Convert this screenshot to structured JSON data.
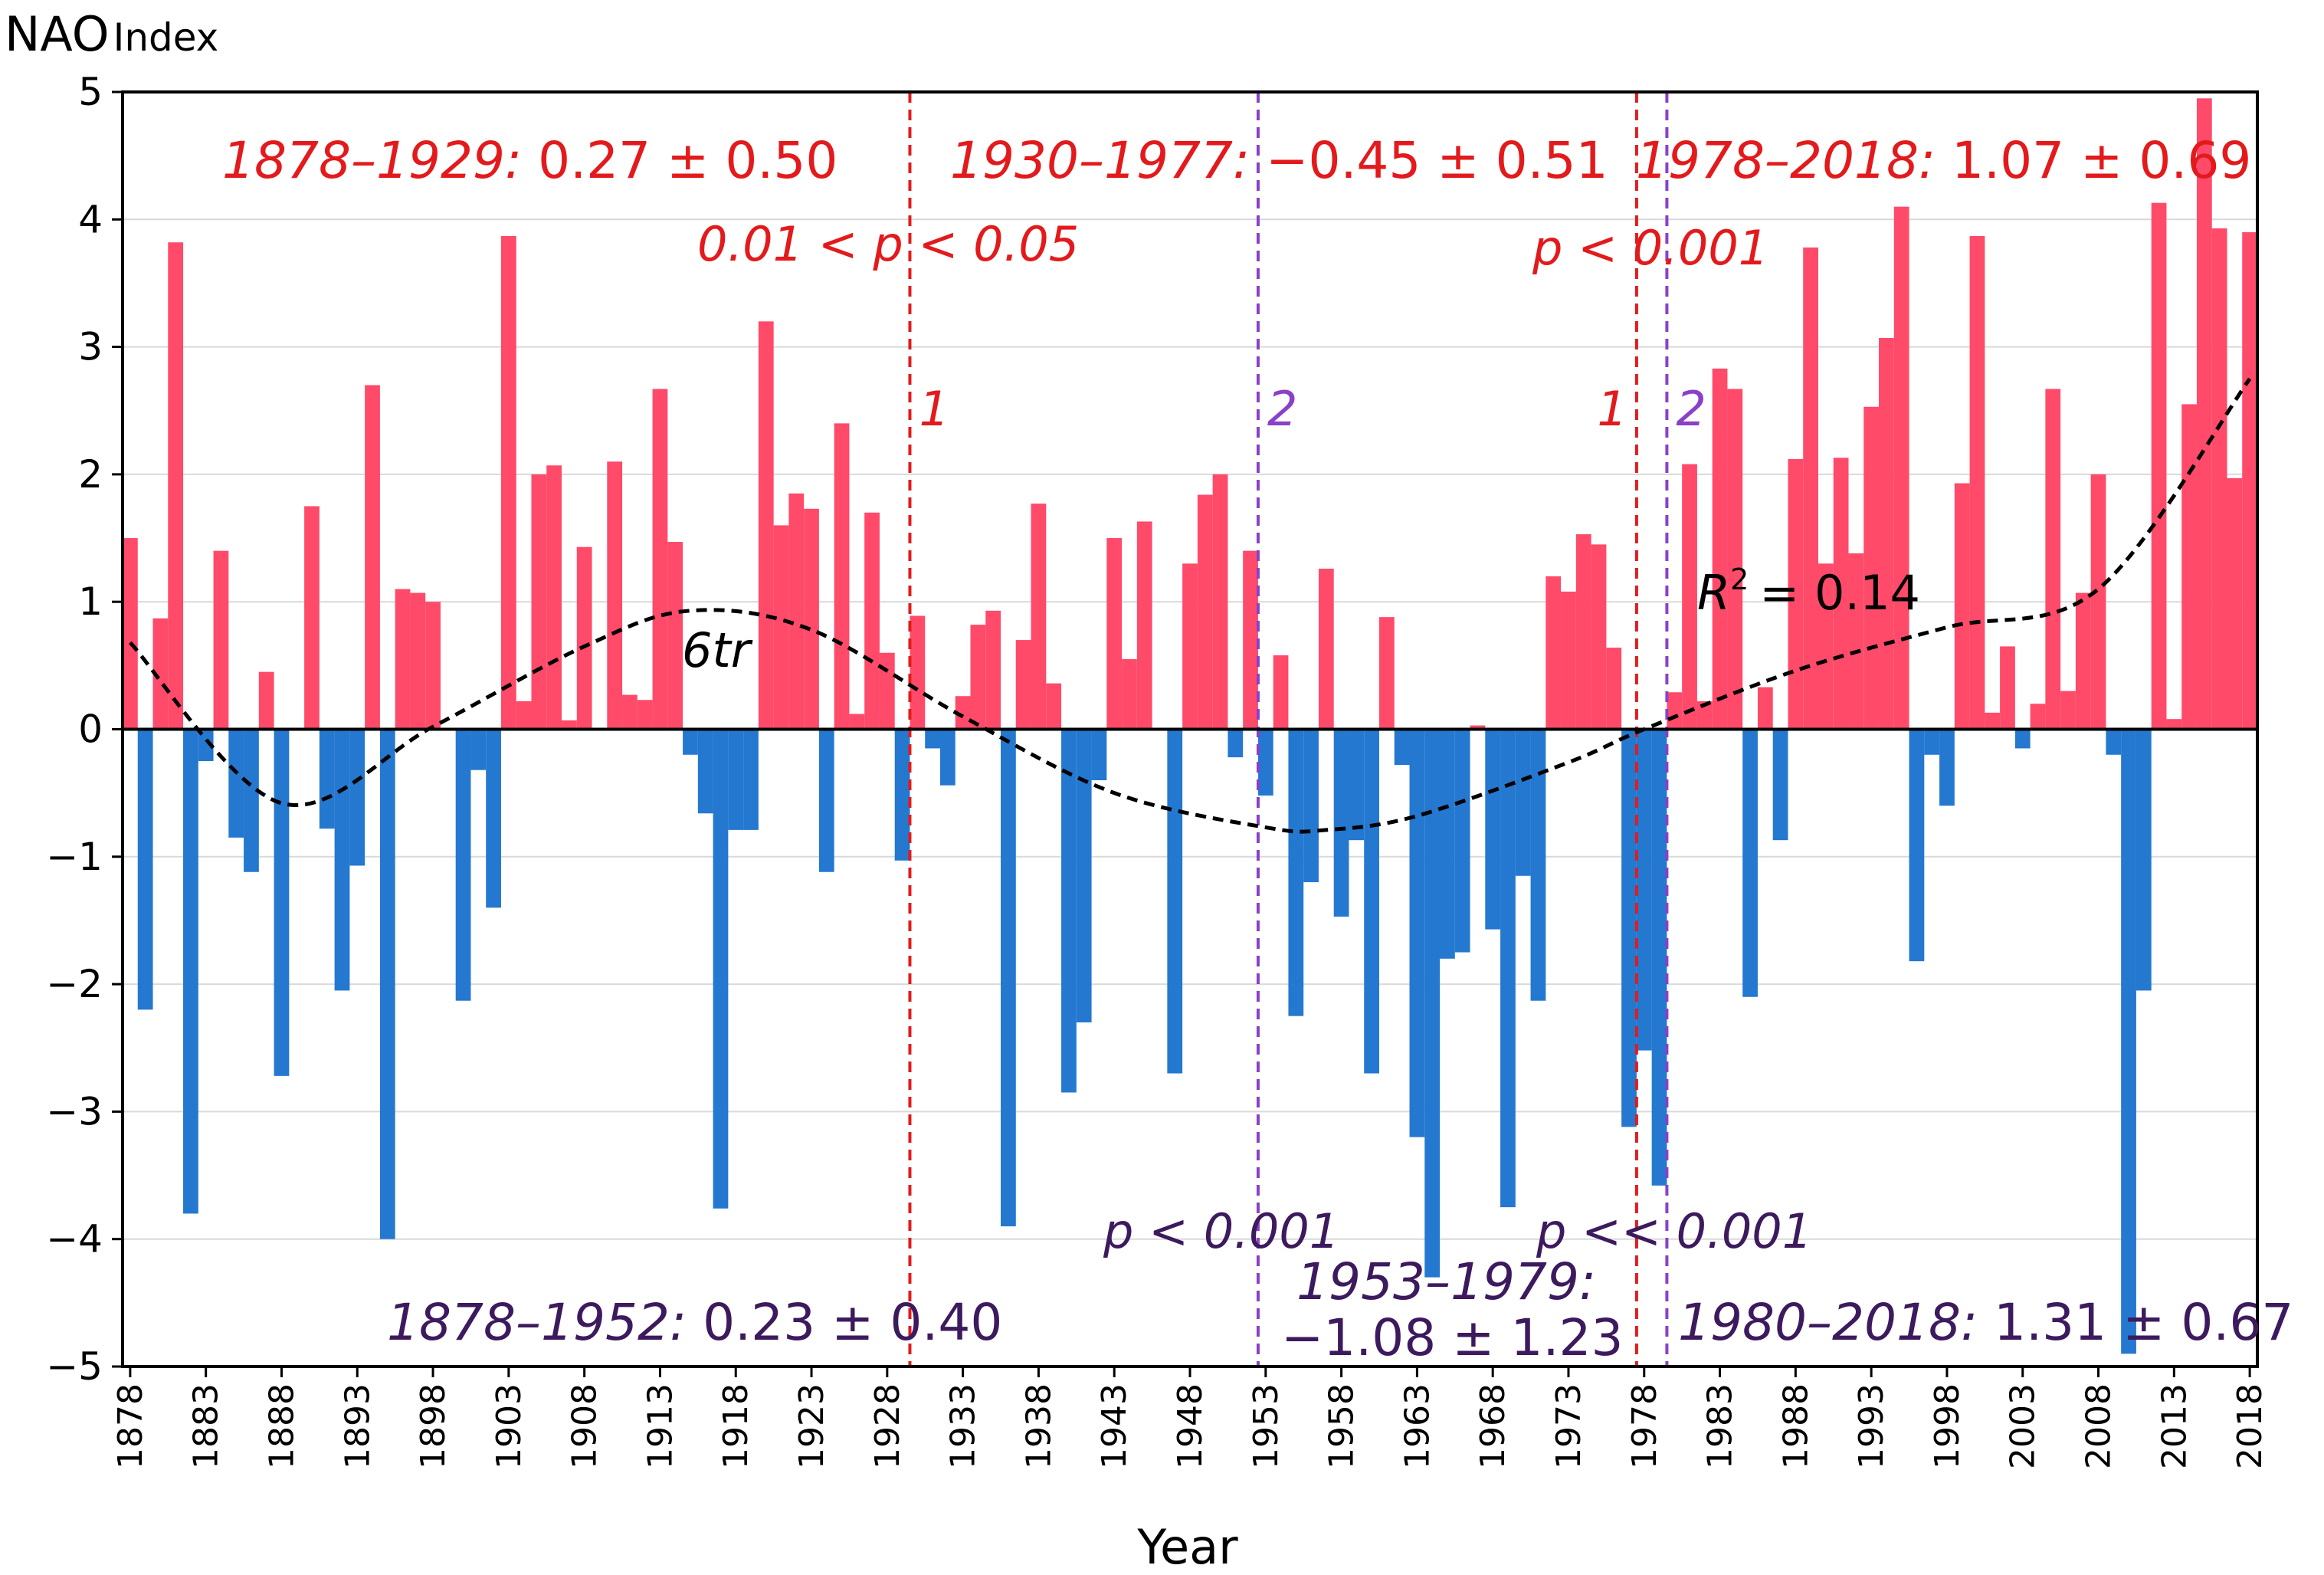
{
  "chart_data": {
    "type": "bar",
    "title": "",
    "ylabel_main": "NAO",
    "ylabel_sub": "Index",
    "xlabel": "Year",
    "ylim": [
      -5,
      5
    ],
    "yticks": [
      5,
      4,
      3,
      2,
      1,
      0,
      -1,
      -2,
      -3,
      -4,
      -5
    ],
    "ytick_labels": [
      "5",
      "4",
      "3",
      "2",
      "1",
      "0",
      "−1",
      "−2",
      "−3",
      "−4",
      "−5"
    ],
    "xlim": [
      1878,
      2018
    ],
    "xticks": [
      1878,
      1883,
      1888,
      1893,
      1898,
      1903,
      1908,
      1913,
      1918,
      1923,
      1928,
      1933,
      1938,
      1943,
      1948,
      1953,
      1958,
      1963,
      1968,
      1973,
      1978,
      1983,
      1988,
      1993,
      1998,
      2003,
      2008,
      2013,
      2018
    ],
    "colors": {
      "positive": "#ff4a6a",
      "negative": "#2478d0",
      "red_line": "#e31a1c",
      "purple_line": "#8a40c8",
      "red_text": "#e31a1c",
      "purple_text": "#3d1a5e"
    },
    "years": [
      1878,
      1879,
      1880,
      1881,
      1882,
      1883,
      1884,
      1885,
      1886,
      1887,
      1888,
      1889,
      1890,
      1891,
      1892,
      1893,
      1894,
      1895,
      1896,
      1897,
      1898,
      1899,
      1900,
      1901,
      1902,
      1903,
      1904,
      1905,
      1906,
      1907,
      1908,
      1909,
      1910,
      1911,
      1912,
      1913,
      1914,
      1915,
      1916,
      1917,
      1918,
      1919,
      1920,
      1921,
      1922,
      1923,
      1924,
      1925,
      1926,
      1927,
      1928,
      1929,
      1930,
      1931,
      1932,
      1933,
      1934,
      1935,
      1936,
      1937,
      1938,
      1939,
      1940,
      1941,
      1942,
      1943,
      1944,
      1945,
      1946,
      1947,
      1948,
      1949,
      1950,
      1951,
      1952,
      1953,
      1954,
      1955,
      1956,
      1957,
      1958,
      1959,
      1960,
      1961,
      1962,
      1963,
      1964,
      1965,
      1966,
      1967,
      1968,
      1969,
      1970,
      1971,
      1972,
      1973,
      1974,
      1975,
      1976,
      1977,
      1978,
      1979,
      1980,
      1981,
      1982,
      1983,
      1984,
      1985,
      1986,
      1987,
      1988,
      1989,
      1990,
      1991,
      1992,
      1993,
      1994,
      1995,
      1996,
      1997,
      1998,
      1999,
      2000,
      2001,
      2002,
      2003,
      2004,
      2005,
      2006,
      2007,
      2008,
      2009,
      2010,
      2011,
      2012,
      2013,
      2014,
      2015,
      2016,
      2017,
      2018
    ],
    "values": [
      1.5,
      -2.2,
      0.87,
      3.82,
      -3.8,
      -0.25,
      1.4,
      -0.85,
      -1.12,
      0.45,
      -2.72,
      0.0,
      1.75,
      -0.78,
      -2.05,
      -1.07,
      2.7,
      -4.0,
      1.1,
      1.07,
      1.0,
      0.0,
      -2.13,
      -0.32,
      -1.4,
      3.87,
      0.22,
      2.0,
      2.07,
      0.07,
      1.43,
      0.0,
      2.1,
      0.27,
      0.23,
      2.67,
      1.47,
      -0.2,
      -0.66,
      -3.76,
      -0.79,
      -0.79,
      3.2,
      1.6,
      1.85,
      1.73,
      -1.12,
      2.4,
      0.12,
      1.7,
      0.6,
      -1.03,
      0.89,
      -0.15,
      -0.44,
      0.26,
      0.82,
      0.93,
      -3.9,
      0.7,
      1.77,
      0.36,
      -2.85,
      -2.3,
      -0.4,
      1.5,
      0.55,
      1.63,
      0.0,
      -2.7,
      1.3,
      1.84,
      2.0,
      -0.22,
      1.4,
      -0.52,
      0.58,
      -2.25,
      -1.2,
      1.26,
      -1.47,
      -0.87,
      -2.7,
      0.88,
      -0.28,
      -3.2,
      -4.3,
      -1.8,
      -1.75,
      0.03,
      -1.57,
      -3.75,
      -1.15,
      -2.13,
      1.2,
      1.08,
      1.53,
      1.45,
      0.64,
      -3.12,
      -2.52,
      -3.58,
      0.29,
      2.08,
      0.22,
      2.83,
      2.67,
      -2.1,
      0.33,
      -0.87,
      2.12,
      3.78,
      1.3,
      2.13,
      1.38,
      2.53,
      3.07,
      4.1,
      -1.82,
      -0.2,
      -0.6,
      1.93,
      3.87,
      0.13,
      0.65,
      -0.15,
      0.2,
      2.67,
      0.3,
      1.07,
      2.0,
      -0.2,
      -4.9,
      -2.05,
      4.13,
      0.08,
      2.55,
      4.95,
      3.93,
      1.97,
      3.9
    ],
    "red_breaks": [
      {
        "year": 1929,
        "label": "1"
      },
      {
        "year": 1977,
        "label": "1"
      }
    ],
    "purple_breaks": [
      {
        "year": 1952,
        "label": "2"
      },
      {
        "year": 1979,
        "label": "2"
      }
    ],
    "trend": {
      "label": "6tr",
      "r2_label": "R",
      "r2_sup": "2",
      "r2_value": "= 0.14",
      "x": [
        1878,
        1888,
        1898,
        1908,
        1915,
        1923,
        1933,
        1943,
        1953,
        1957,
        1963,
        1973,
        1978,
        1988,
        1998,
        2008,
        2018
      ],
      "y": [
        0.68,
        -0.58,
        0.02,
        0.65,
        0.93,
        0.78,
        0.1,
        -0.5,
        -0.77,
        -0.79,
        -0.68,
        -0.26,
        0.0,
        0.46,
        0.8,
        1.1,
        2.75
      ]
    },
    "annotations": {
      "red_period_1": {
        "range": "1878–1929:",
        "value": "0.27 ± 0.50"
      },
      "red_period_2": {
        "range": "1930–1977:",
        "value": "−0.45 ± 0.51"
      },
      "red_period_3": {
        "range": "1978–2018:",
        "value": "1.07 ± 0.69"
      },
      "red_p_1": "0.01 < p < 0.05",
      "red_p_2": "p < 0.001",
      "purple_period_1": {
        "range": "1878–1952:",
        "value": "0.23 ± 0.40"
      },
      "purple_period_2": {
        "range": "1953–1979:",
        "value": "−1.08 ± 1.23"
      },
      "purple_period_3": {
        "range": "1980–2018:",
        "value": "1.31 ± 0.67"
      },
      "purple_p_1": "p < 0.001",
      "purple_p_2": "p << 0.001"
    }
  }
}
